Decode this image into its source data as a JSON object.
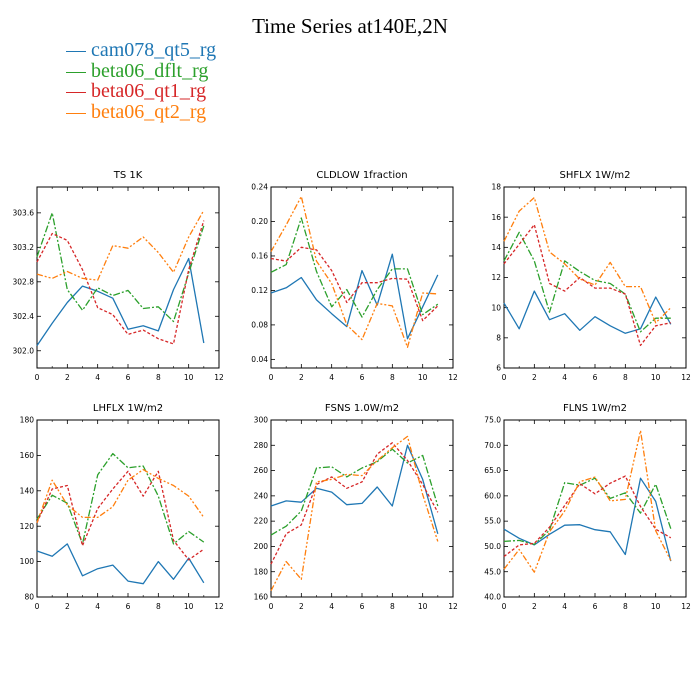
{
  "title": "Time Series at140E,2N",
  "legend": [
    {
      "label": "cam078_qt5_rg",
      "color": "#1f77b4"
    },
    {
      "label": "beta06_dflt_rg",
      "color": "#2ca02c"
    },
    {
      "label": "beta06_qt1_rg",
      "color": "#d62728"
    },
    {
      "label": "beta06_qt2_rg",
      "color": "#ff7f0e"
    }
  ],
  "chart_data": [
    {
      "type": "line",
      "title": "TS   1K",
      "x": [
        0,
        1,
        2,
        3,
        4,
        5,
        6,
        7,
        8,
        9,
        10,
        11
      ],
      "xlim": [
        0,
        12
      ],
      "xticks": [
        "0",
        "2",
        "4",
        "6",
        "8",
        "10",
        "12"
      ],
      "ylim": [
        301.8,
        303.9
      ],
      "yticks": [
        "302.0",
        "302.4",
        "302.8",
        "303.2",
        "303.6"
      ],
      "series": [
        {
          "values": [
            302.06,
            302.32,
            302.56,
            302.75,
            302.69,
            302.61,
            302.25,
            302.29,
            302.23,
            302.71,
            303.07,
            302.09
          ]
        },
        {
          "values": [
            303.09,
            303.6,
            302.71,
            302.47,
            302.73,
            302.64,
            302.7,
            302.49,
            302.51,
            302.34,
            302.9,
            303.45
          ]
        },
        {
          "values": [
            303.03,
            303.36,
            303.28,
            302.94,
            302.5,
            302.42,
            302.19,
            302.24,
            302.14,
            302.08,
            302.94,
            303.51
          ]
        },
        {
          "values": [
            302.89,
            302.84,
            302.92,
            302.84,
            302.82,
            303.22,
            303.19,
            303.32,
            303.14,
            302.91,
            303.32,
            303.63
          ]
        }
      ]
    },
    {
      "type": "line",
      "title": "CLDLOW   1fraction",
      "x": [
        0,
        1,
        2,
        3,
        4,
        5,
        6,
        7,
        8,
        9,
        10,
        11
      ],
      "xlim": [
        0,
        12
      ],
      "xticks": [
        "0",
        "2",
        "4",
        "6",
        "8",
        "10",
        "12"
      ],
      "ylim": [
        0.03,
        0.24
      ],
      "yticks": [
        "0.04",
        "0.08",
        "0.12",
        "0.16",
        "0.20",
        "0.24"
      ],
      "series": [
        {
          "values": [
            0.117,
            0.123,
            0.135,
            0.109,
            0.093,
            0.078,
            0.143,
            0.103,
            0.162,
            0.064,
            0.101,
            0.138
          ]
        },
        {
          "values": [
            0.141,
            0.15,
            0.204,
            0.142,
            0.101,
            0.121,
            0.089,
            0.121,
            0.145,
            0.145,
            0.092,
            0.104
          ]
        },
        {
          "values": [
            0.157,
            0.154,
            0.17,
            0.167,
            0.143,
            0.106,
            0.129,
            0.129,
            0.134,
            0.133,
            0.085,
            0.102
          ]
        },
        {
          "values": [
            0.165,
            0.196,
            0.229,
            0.154,
            0.128,
            0.08,
            0.063,
            0.105,
            0.102,
            0.054,
            0.117,
            0.116
          ]
        }
      ]
    },
    {
      "type": "line",
      "title": "SHFLX   1W/m2",
      "x": [
        0,
        1,
        2,
        3,
        4,
        5,
        6,
        7,
        8,
        9,
        10,
        11
      ],
      "xlim": [
        0,
        12
      ],
      "xticks": [
        "0",
        "2",
        "4",
        "6",
        "8",
        "10",
        "12"
      ],
      "ylim": [
        6,
        18
      ],
      "yticks": [
        "6",
        "8",
        "10",
        "12",
        "14",
        "16",
        "18"
      ],
      "series": [
        {
          "values": [
            10.3,
            8.6,
            11.1,
            9.2,
            9.6,
            8.5,
            9.4,
            8.8,
            8.3,
            8.6,
            10.7,
            8.9
          ]
        },
        {
          "values": [
            13.1,
            15.0,
            13.1,
            9.7,
            13.1,
            12.4,
            11.8,
            11.6,
            10.9,
            8.4,
            9.3,
            9.3
          ]
        },
        {
          "values": [
            12.9,
            14.2,
            15.5,
            11.6,
            11.1,
            12.0,
            11.3,
            11.3,
            10.9,
            7.5,
            8.8,
            9.0
          ]
        },
        {
          "values": [
            14.4,
            16.4,
            17.3,
            13.7,
            12.9,
            11.9,
            11.5,
            13.0,
            11.4,
            11.4,
            9.0,
            10.0
          ]
        }
      ]
    },
    {
      "type": "line",
      "title": "LHFLX   1W/m2",
      "x": [
        0,
        1,
        2,
        3,
        4,
        5,
        6,
        7,
        8,
        9,
        10,
        11
      ],
      "xlim": [
        0,
        12
      ],
      "xticks": [
        "0",
        "2",
        "4",
        "6",
        "8",
        "10",
        "12"
      ],
      "ylim": [
        80,
        180
      ],
      "yticks": [
        "80",
        "100",
        "120",
        "140",
        "160",
        "180"
      ],
      "series": [
        {
          "values": [
            106.0,
            103.0,
            110.0,
            92.0,
            96.0,
            98.0,
            89.0,
            87.5,
            100.0,
            90.0,
            102.0,
            88.0
          ]
        },
        {
          "values": [
            124.0,
            137.5,
            133.0,
            110.0,
            149.0,
            161.0,
            153.0,
            154.0,
            137.0,
            110.0,
            117.0,
            111.0
          ]
        },
        {
          "values": [
            122.0,
            141.0,
            143.0,
            109.0,
            130.0,
            141.0,
            151.0,
            137.0,
            151.0,
            112.0,
            101.0,
            107.0
          ]
        },
        {
          "values": [
            122.0,
            146.0,
            132.0,
            125.0,
            125.0,
            131.0,
            146.0,
            152.0,
            147.0,
            143.0,
            137.0,
            125.0
          ]
        }
      ]
    },
    {
      "type": "line",
      "title": "FSNS   1.0W/m2",
      "x": [
        0,
        1,
        2,
        3,
        4,
        5,
        6,
        7,
        8,
        9,
        10,
        11
      ],
      "xlim": [
        0,
        12
      ],
      "xticks": [
        "0",
        "2",
        "4",
        "6",
        "8",
        "10",
        "12"
      ],
      "ylim": [
        160,
        300
      ],
      "yticks": [
        "160",
        "180",
        "200",
        "220",
        "240",
        "260",
        "280",
        "300"
      ],
      "series": [
        {
          "values": [
            232.0,
            236.0,
            235.0,
            246.0,
            243.0,
            233.0,
            234.0,
            247.0,
            232.0,
            280.0,
            253.0,
            210.0
          ]
        },
        {
          "values": [
            209.0,
            216.0,
            228.0,
            262.0,
            263.0,
            255.0,
            262.0,
            267.0,
            277.0,
            266.0,
            272.0,
            232.0
          ]
        },
        {
          "values": [
            186.0,
            210.0,
            217.0,
            249.0,
            255.0,
            246.0,
            251.0,
            273.0,
            282.0,
            268.0,
            249.0,
            227.0
          ]
        },
        {
          "values": [
            165.0,
            188.0,
            174.0,
            251.0,
            253.0,
            257.0,
            256.0,
            268.0,
            278.0,
            287.0,
            241.0,
            204.0
          ]
        }
      ]
    },
    {
      "type": "line",
      "title": "FLNS   1W/m2",
      "x": [
        0,
        1,
        2,
        3,
        4,
        5,
        6,
        7,
        8,
        9,
        10,
        11
      ],
      "xlim": [
        0,
        12
      ],
      "xticks": [
        "0",
        "2",
        "4",
        "6",
        "8",
        "10",
        "12"
      ],
      "ylim": [
        40,
        75
      ],
      "yticks": [
        "40.0",
        "45.0",
        "50.0",
        "55.0",
        "60.0",
        "65.0",
        "70.0",
        "75.0"
      ],
      "series": [
        {
          "values": [
            53.4,
            51.6,
            50.3,
            52.4,
            54.2,
            54.3,
            53.3,
            52.9,
            48.4,
            63.5,
            58.9,
            47.1
          ]
        },
        {
          "values": [
            51.0,
            51.2,
            50.4,
            53.2,
            62.6,
            62.1,
            63.5,
            59.5,
            60.6,
            56.6,
            62.3,
            53.5
          ]
        },
        {
          "values": [
            48.0,
            50.3,
            50.6,
            53.8,
            58.1,
            62.4,
            60.4,
            62.5,
            63.9,
            57.9,
            53.4,
            51.7
          ]
        },
        {
          "values": [
            45.5,
            49.4,
            44.9,
            52.9,
            57.0,
            62.8,
            63.7,
            59.0,
            59.3,
            72.9,
            53.1,
            47.2
          ]
        }
      ]
    }
  ]
}
